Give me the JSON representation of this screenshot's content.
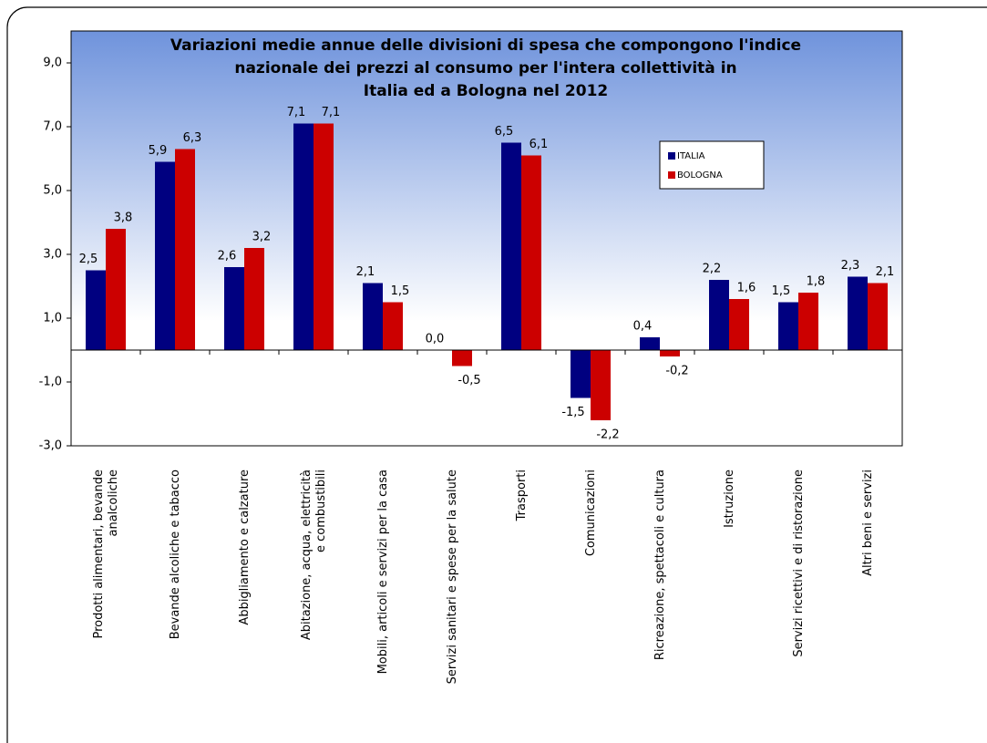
{
  "chart_data": {
    "type": "bar",
    "title": "Variazioni medie annue delle divisioni di spesa che compongono l'indice\nnazionale dei prezzi al consumo per l'intera collettività in\nItalia ed a Bologna nel 2012",
    "categories": [
      "Prodotti alimentari, bevande\nanalcoliche",
      "Bevande alcoliche e tabacco",
      "Abbigliamento e calzature",
      "Abitazione, acqua, elettricità\ne combustibili",
      "Mobili, articoli e servizi per la casa",
      "Servizi sanitari e spese per la salute",
      "Trasporti",
      "Comunicazioni",
      "Ricreazione, spettacoli e cultura",
      "Istruzione",
      "Servizi ricettivi e di ristorazione",
      "Altri beni e servizi"
    ],
    "series": [
      {
        "name": "ITALIA",
        "color": "#000080",
        "values": [
          2.5,
          5.9,
          2.6,
          7.1,
          2.1,
          0.0,
          6.5,
          -1.5,
          0.4,
          2.2,
          1.5,
          2.3
        ],
        "value_labels": [
          "2,5",
          "5,9",
          "2,6",
          "7,1",
          "2,1",
          "0,0",
          "6,5",
          "-1,5",
          "0,4",
          "2,2",
          "1,5",
          "2,3"
        ]
      },
      {
        "name": "BOLOGNA",
        "color": "#cc0000",
        "values": [
          3.8,
          6.3,
          3.2,
          7.1,
          1.5,
          -0.5,
          6.1,
          -2.2,
          -0.2,
          1.6,
          1.8,
          2.1
        ],
        "value_labels": [
          "3,8",
          "6,3",
          "3,2",
          "7,1",
          "1,5",
          "-0,5",
          "6,1",
          "-2,2",
          "-0,2",
          "1,6",
          "1,8",
          "2,1"
        ]
      }
    ],
    "ylim": [
      -3,
      10
    ],
    "yticks": [
      {
        "value": -3,
        "label": "-3,0"
      },
      {
        "value": -1,
        "label": "-1,0"
      },
      {
        "value": 1,
        "label": "1,0"
      },
      {
        "value": 3,
        "label": "3,0"
      },
      {
        "value": 5,
        "label": "5,0"
      },
      {
        "value": 7,
        "label": "7,0"
      },
      {
        "value": 9,
        "label": "9,0"
      }
    ],
    "legend": "upper right"
  }
}
